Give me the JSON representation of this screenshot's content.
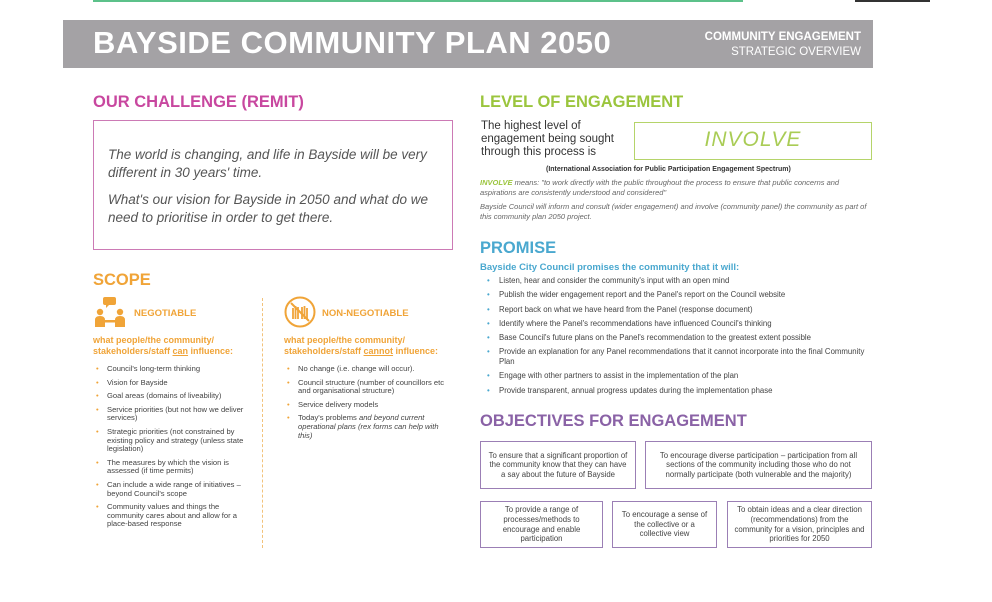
{
  "banner": {
    "title": "BAYSIDE COMMUNITY PLAN 2050",
    "subtitle_line1": "COMMUNITY ENGAGEMENT",
    "subtitle_line2": "STRATEGIC OVERVIEW"
  },
  "challenge": {
    "heading": "OUR CHALLENGE (REMIT)",
    "paragraph1": "The world is changing, and life in Bayside will be very different in 30 years' time.",
    "paragraph2": "What's our vision for Bayside in 2050 and what do we need to prioritise in order to get there."
  },
  "level": {
    "heading": "LEVEL OF ENGAGEMENT",
    "text": "The highest level of engagement being sought through this process is",
    "value": "INVOLVE",
    "source": "(International Association for Public Participation Engagement Spectrum)",
    "means_key": "INVOLVE",
    "means_text": " means: \"to work directly with the public throughout the process to ensure that public concerns and aspirations are consistently understood and considered\"",
    "inform_text": "Bayside Council will inform and consult (wider engagement) and involve (community panel) the community as part of this community plan 2050 project."
  },
  "scope": {
    "heading": "SCOPE",
    "negotiable": {
      "label": "NEGOTIABLE",
      "sub_pre": "what people/the community/ stakeholders/staff ",
      "sub_u": "can",
      "sub_post": " influence:",
      "items": [
        "Council's long-term thinking",
        "Vision for Bayside",
        "Goal areas (domains of liveability)",
        "Service priorities (but not how we deliver services)",
        "Strategic priorities (not constrained by existing policy and strategy (unless state legislation)",
        "The measures by which the vision is assessed (if time permits)",
        "Can include a wide range of initiatives – beyond Council's scope",
        "Community values and things the community cares about and allow for a place-based response"
      ]
    },
    "non_negotiable": {
      "label": "NON-NEGOTIABLE",
      "sub_pre": "what people/the community/ stakeholders/staff ",
      "sub_u": "cannot",
      "sub_post": " influence:",
      "items": [
        "No change (i.e. change will occur).",
        "Council structure (number of councillors etc and organisational structure)",
        "Service delivery models"
      ],
      "last_item_plain": "Today's problems ",
      "last_item_italic": "and beyond current operational plans (rex forms can help with this)"
    },
    "icons": {
      "negotiable": "people-talking-icon",
      "non_negotiable": "no-hands-icon"
    },
    "accent": "#f0a438"
  },
  "promise": {
    "heading": "PROMISE",
    "intro": "Bayside City Council promises the community that it will:",
    "items": [
      "Listen, hear and consider the community's input with an open mind",
      "Publish the wider engagement report and the Panel's report on the Council website",
      "Report back on what we have heard from the Panel (response document)",
      "Identify where the Panel's recommendations have influenced Council's thinking",
      "Base Council's future plans on the Panel's recommendation to the greatest extent possible",
      "Provide an explanation for any Panel recommendations that it cannot incorporate into the final Community Plan",
      "Engage with other partners to assist in the implementation of the plan",
      "Provide transparent, annual progress updates during the implementation phase"
    ]
  },
  "objectives": {
    "heading": "OBJECTIVES FOR ENGAGEMENT",
    "items": [
      "To ensure that a significant proportion of the community know that they can have a say about the future of Bayside",
      "To encourage diverse participation – participation from all sections of the community including those who do not normally participate (both vulnerable and the majority)",
      "To provide a range of processes/methods to encourage and enable participation",
      "To encourage a sense of the collective or a collective view",
      "To obtain ideas and a clear direction (recommendations) from the community for a vision, principles and priorities for 2050"
    ]
  },
  "colors": {
    "banner": "#a4a2a5",
    "challenge": "#c8479f",
    "level": "#9bc53d",
    "scope": "#f0a438",
    "promise": "#4aa8cf",
    "objectives": "#8a62a6"
  }
}
